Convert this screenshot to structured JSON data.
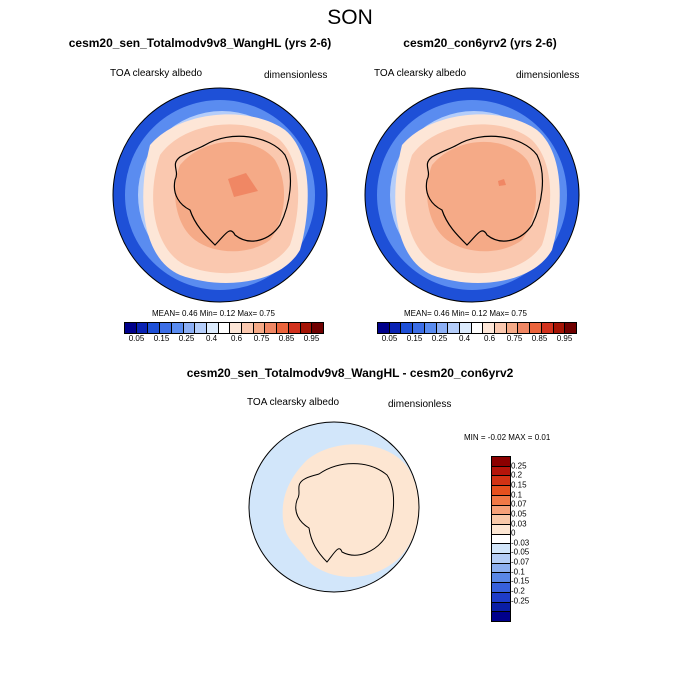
{
  "title": "SON",
  "panels": [
    {
      "title": "cesm20_sen_Totalmodv9v8_WangHL (yrs 2-6)",
      "left_label": "TOA clearsky albedo",
      "right_label": "dimensionless",
      "stats": "MEAN=  0.46  Min=  0.12  Max=  0.75"
    },
    {
      "title": "cesm20_con6yrv2 (yrs 2-6)",
      "left_label": "TOA clearsky albedo",
      "right_label": "dimensionless",
      "stats": "MEAN=  0.46  Min=  0.12  Max=  0.75"
    }
  ],
  "diff_panel": {
    "title": "cesm20_sen_Totalmodv9v8_WangHL - cesm20_con6yrv2",
    "left_label": "TOA clearsky albedo",
    "right_label": "dimensionless",
    "stats": "MIN = -0.02 MAX =   0.01"
  },
  "colorbar": {
    "labels": [
      "0.05",
      "0.15",
      "0.25",
      "0.4",
      "0.6",
      "0.75",
      "0.85",
      "0.95"
    ],
    "colors": [
      "#00008b",
      "#0a23b4",
      "#1e50d7",
      "#3c6ee6",
      "#5a8cf0",
      "#8caff5",
      "#b4cdfa",
      "#dcebfd",
      "#ffffff",
      "#fde6d7",
      "#fac8af",
      "#f5aa87",
      "#f08764",
      "#eb643c",
      "#d2321e",
      "#a51405",
      "#700000"
    ]
  },
  "diff_colorbar": {
    "labels": [
      "0.25",
      "0.2",
      "0.15",
      "0.1",
      "0.07",
      "0.05",
      "0.03",
      "0",
      "-0.03",
      "-0.05",
      "-0.07",
      "-0.1",
      "-0.15",
      "-0.2",
      "-0.25"
    ],
    "colors": [
      "#8b0000",
      "#b4140a",
      "#d23214",
      "#e6501e",
      "#f07846",
      "#f5a078",
      "#f8c8a8",
      "#fde6d2",
      "#ffffff",
      "#d2e6fa",
      "#b4cdf5",
      "#8cafef",
      "#5a87e6",
      "#3760dc",
      "#1e3cc8",
      "#0a1ea5",
      "#00008b"
    ]
  },
  "colors": {
    "ocean_far": "#1e50d7",
    "ocean_near": "#5a8cf0",
    "sea_ice": "#b4cdfa",
    "ice_edge": "#fde6d7",
    "land_outer": "#fac8af",
    "land_inner": "#f5aa87",
    "plateau": "#f08764",
    "diff_ocean": "#d2e6fa",
    "diff_land": "#fde6d2"
  }
}
